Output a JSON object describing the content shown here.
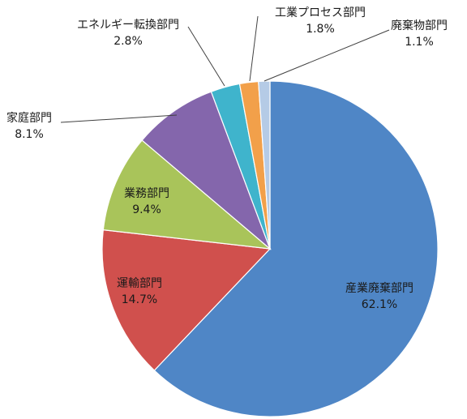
{
  "chart_data": {
    "type": "pie",
    "title": "",
    "start_angle_deg": 0,
    "direction": "clockwise",
    "slices": [
      {
        "name": "産業廃棄部門",
        "value": 62.1,
        "label": "62.1%",
        "color": "#4f86c6"
      },
      {
        "name": "運輸部門",
        "value": 14.7,
        "label": "14.7%",
        "color": "#d0504d"
      },
      {
        "name": "業務部門",
        "value": 9.4,
        "label": "9.4%",
        "color": "#a9c45a"
      },
      {
        "name": "家庭部門",
        "value": 8.1,
        "label": "8.1%",
        "color": "#8466ac"
      },
      {
        "name": "エネルギー転換部門",
        "value": 2.8,
        "label": "2.8%",
        "color": "#3fb4cc"
      },
      {
        "name": "工業プロセス部門",
        "value": 1.8,
        "label": "1.8%",
        "color": "#f2a04a"
      },
      {
        "name": "廃棄物部門",
        "value": 1.1,
        "label": "1.1%",
        "color": "#b5cbe6"
      }
    ]
  }
}
